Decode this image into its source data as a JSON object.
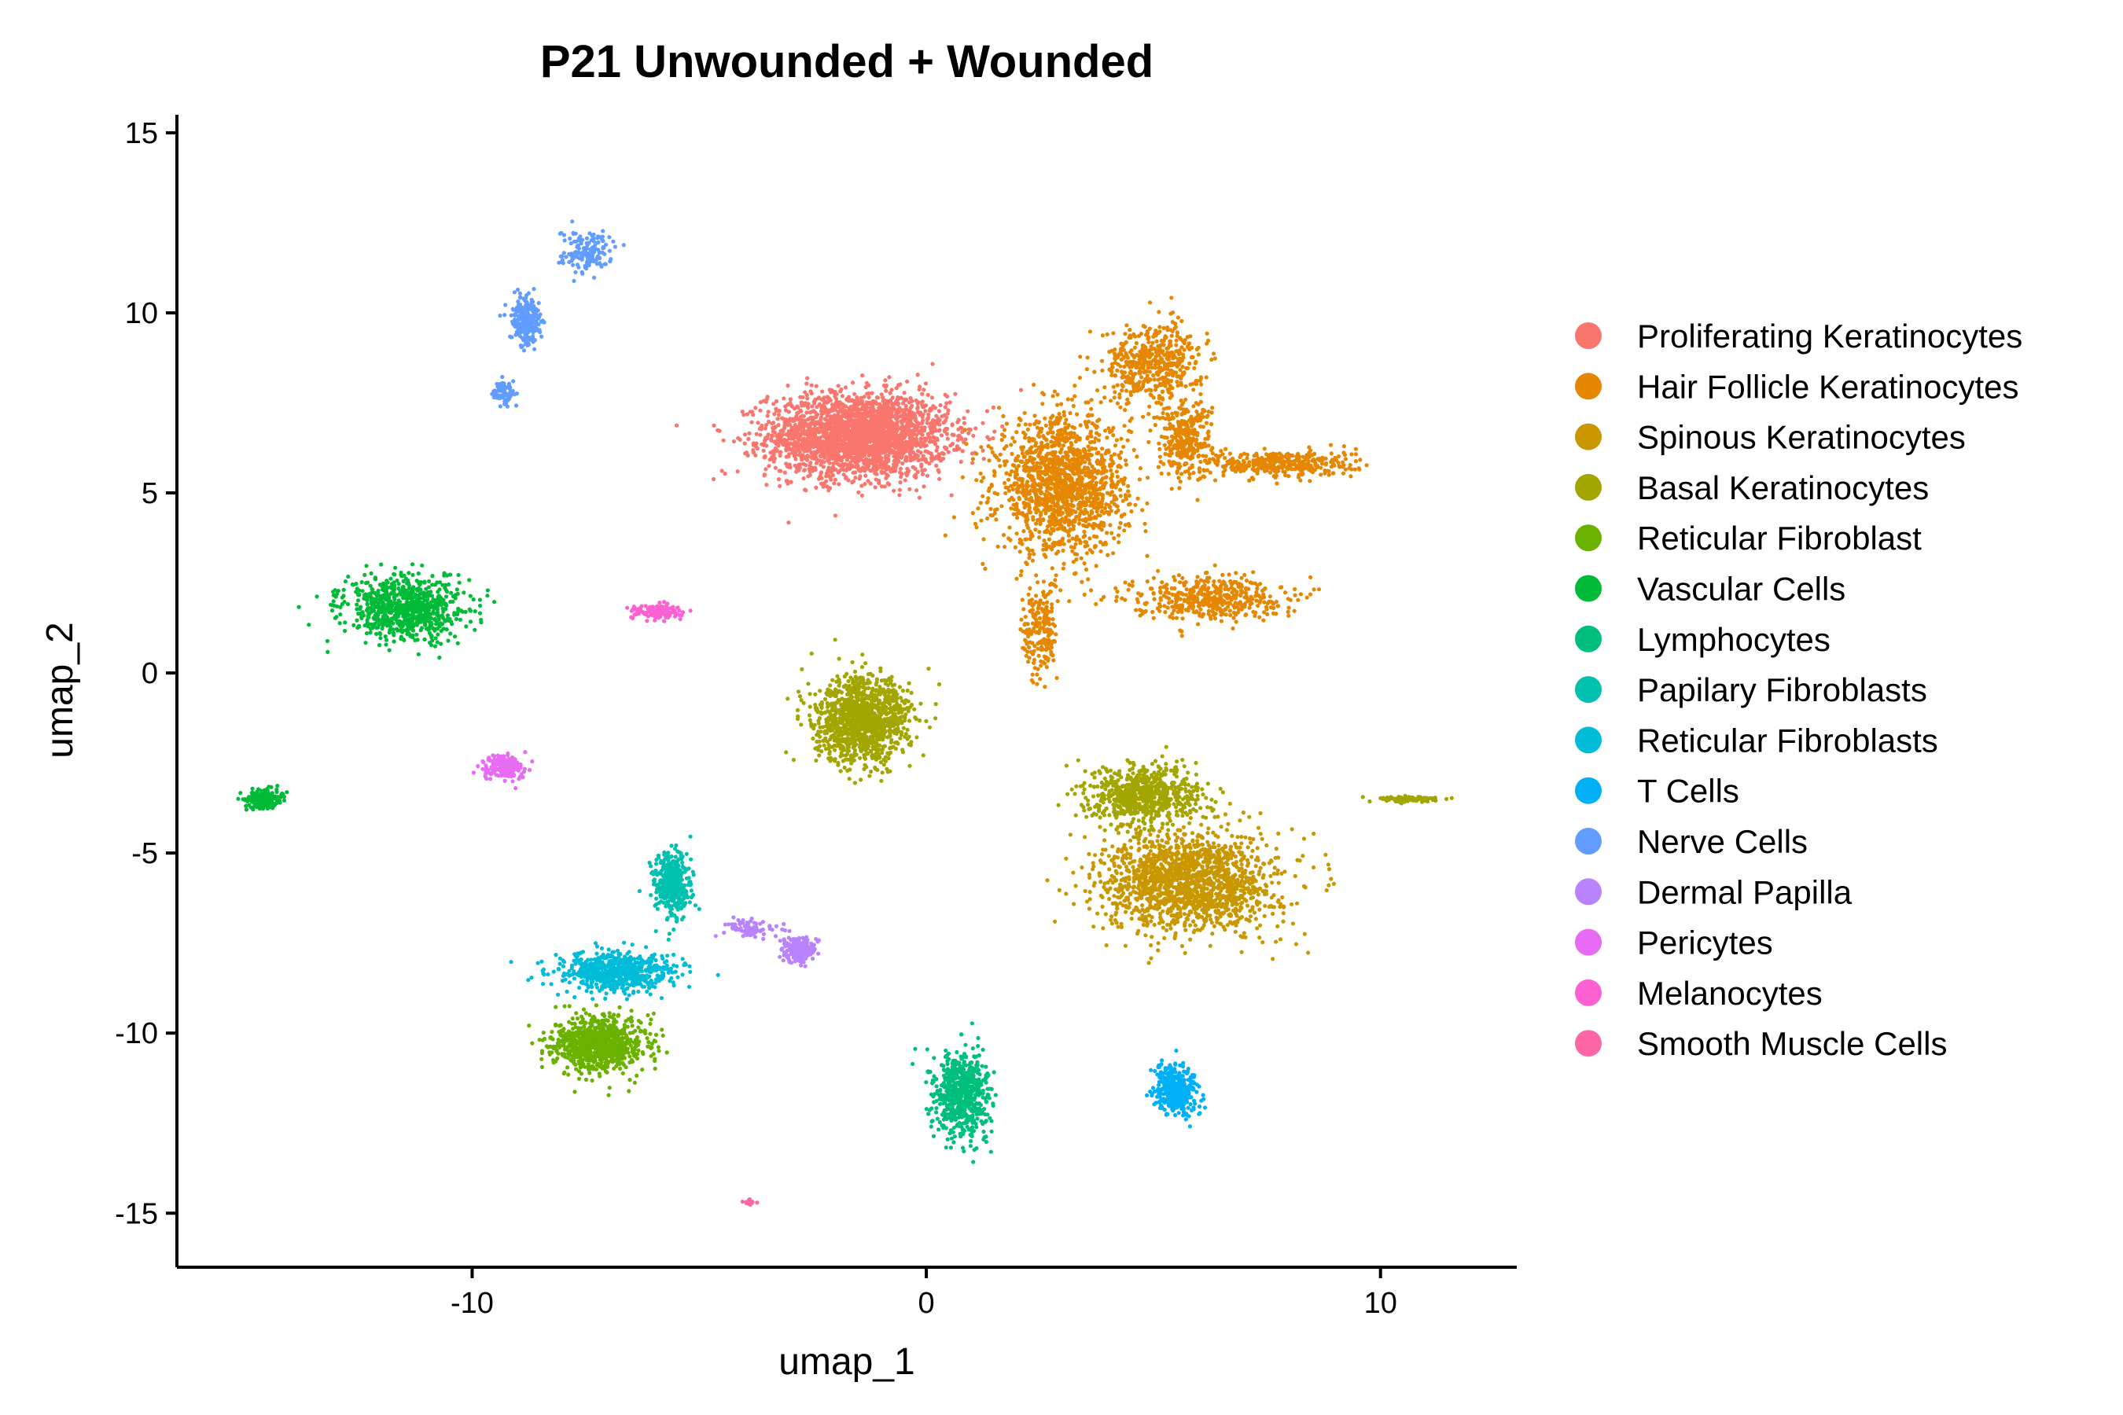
{
  "chart_data": {
    "type": "scatter",
    "title": "P21 Unwounded + Wounded",
    "xlabel": "umap_1",
    "ylabel": "umap_2",
    "xlim": [
      -16.5,
      13
    ],
    "ylim": [
      -16.5,
      15.5
    ],
    "x_ticks": [
      -10,
      0,
      10
    ],
    "x_tick_labels": [
      "-10",
      "0",
      "10"
    ],
    "y_ticks": [
      15,
      10,
      5,
      0,
      -5,
      -10,
      -15
    ],
    "y_tick_labels": [
      "15",
      "10",
      "5",
      "0",
      "-5",
      "-10",
      "-15"
    ],
    "grid": false,
    "legend_position": "right",
    "series": [
      {
        "name": "Proliferating Keratinocytes",
        "color": "#F8766D",
        "clusters": [
          {
            "x": -1.5,
            "y": 6.6,
            "sx": 1.8,
            "sy": 1.05,
            "n": 2600
          }
        ]
      },
      {
        "name": "Hair Follicle Keratinocytes",
        "color": "#E58700",
        "clusters": [
          {
            "x": 3.0,
            "y": 5.2,
            "sx": 1.3,
            "sy": 1.7,
            "n": 1500
          },
          {
            "x": 5.0,
            "y": 8.6,
            "sx": 1.0,
            "sy": 1.0,
            "n": 500
          },
          {
            "x": 7.8,
            "y": 5.8,
            "sx": 1.5,
            "sy": 0.35,
            "n": 400
          },
          {
            "x": 6.2,
            "y": 2.1,
            "sx": 1.5,
            "sy": 0.55,
            "n": 450
          },
          {
            "x": 5.7,
            "y": 6.5,
            "sx": 0.5,
            "sy": 0.9,
            "n": 300
          },
          {
            "x": 2.5,
            "y": 1.2,
            "sx": 0.35,
            "sy": 1.3,
            "n": 200
          }
        ]
      },
      {
        "name": "Spinous Keratinocytes",
        "color": "#C99800",
        "clusters": [
          {
            "x": 5.8,
            "y": -5.8,
            "sx": 1.75,
            "sy": 1.25,
            "n": 1600
          }
        ]
      },
      {
        "name": "Basal Keratinocytes",
        "color": "#A3A500",
        "clusters": [
          {
            "x": -1.4,
            "y": -1.3,
            "sx": 0.95,
            "sy": 1.05,
            "n": 1200
          },
          {
            "x": 4.8,
            "y": -3.4,
            "sx": 1.1,
            "sy": 0.75,
            "n": 700
          },
          {
            "x": 10.6,
            "y": -3.5,
            "sx": 0.6,
            "sy": 0.07,
            "n": 120
          }
        ]
      },
      {
        "name": "Reticular Fibroblast",
        "color": "#6BB100",
        "clusters": [
          {
            "x": -7.2,
            "y": -10.3,
            "sx": 0.9,
            "sy": 0.65,
            "n": 900
          }
        ]
      },
      {
        "name": "Vascular Cells",
        "color": "#00BA38",
        "clusters": [
          {
            "x": -11.5,
            "y": 1.8,
            "sx": 1.2,
            "sy": 0.8,
            "n": 800
          },
          {
            "x": -14.6,
            "y": -3.5,
            "sx": 0.35,
            "sy": 0.25,
            "n": 200
          }
        ]
      },
      {
        "name": "Lymphocytes",
        "color": "#00BF7D",
        "clusters": [
          {
            "x": 0.8,
            "y": -11.7,
            "sx": 0.55,
            "sy": 1.1,
            "n": 650
          }
        ]
      },
      {
        "name": "Papilary Fibroblasts",
        "color": "#00C0AF",
        "clusters": [
          {
            "x": -5.6,
            "y": -5.9,
            "sx": 0.35,
            "sy": 0.8,
            "n": 450
          }
        ]
      },
      {
        "name": "Reticular Fibroblasts",
        "color": "#00BCD8",
        "clusters": [
          {
            "x": -6.8,
            "y": -8.3,
            "sx": 1.2,
            "sy": 0.5,
            "n": 650
          }
        ]
      },
      {
        "name": "T Cells",
        "color": "#00B0F6",
        "clusters": [
          {
            "x": 5.5,
            "y": -11.6,
            "sx": 0.42,
            "sy": 0.6,
            "n": 400
          }
        ]
      },
      {
        "name": "Nerve Cells",
        "color": "#619CFF",
        "clusters": [
          {
            "x": -8.8,
            "y": 9.8,
            "sx": 0.3,
            "sy": 0.55,
            "n": 300
          },
          {
            "x": -9.3,
            "y": 7.8,
            "sx": 0.2,
            "sy": 0.25,
            "n": 80
          },
          {
            "x": -7.5,
            "y": 11.7,
            "sx": 0.55,
            "sy": 0.5,
            "n": 150
          }
        ]
      },
      {
        "name": "Dermal Papilla",
        "color": "#B983FF",
        "clusters": [
          {
            "x": -2.8,
            "y": -7.7,
            "sx": 0.3,
            "sy": 0.3,
            "n": 220
          },
          {
            "x": -3.9,
            "y": -7.1,
            "sx": 0.5,
            "sy": 0.25,
            "n": 80
          }
        ]
      },
      {
        "name": "Pericytes",
        "color": "#E76BF3",
        "clusters": [
          {
            "x": -9.3,
            "y": -2.6,
            "sx": 0.45,
            "sy": 0.3,
            "n": 180
          }
        ]
      },
      {
        "name": "Melanocytes",
        "color": "#FD61D1",
        "clusters": [
          {
            "x": -5.9,
            "y": 1.7,
            "sx": 0.5,
            "sy": 0.18,
            "n": 130
          }
        ]
      },
      {
        "name": "Smooth Muscle Cells",
        "color": "#FF67A4",
        "clusters": [
          {
            "x": -3.9,
            "y": -14.7,
            "sx": 0.12,
            "sy": 0.07,
            "n": 25
          }
        ]
      }
    ]
  }
}
